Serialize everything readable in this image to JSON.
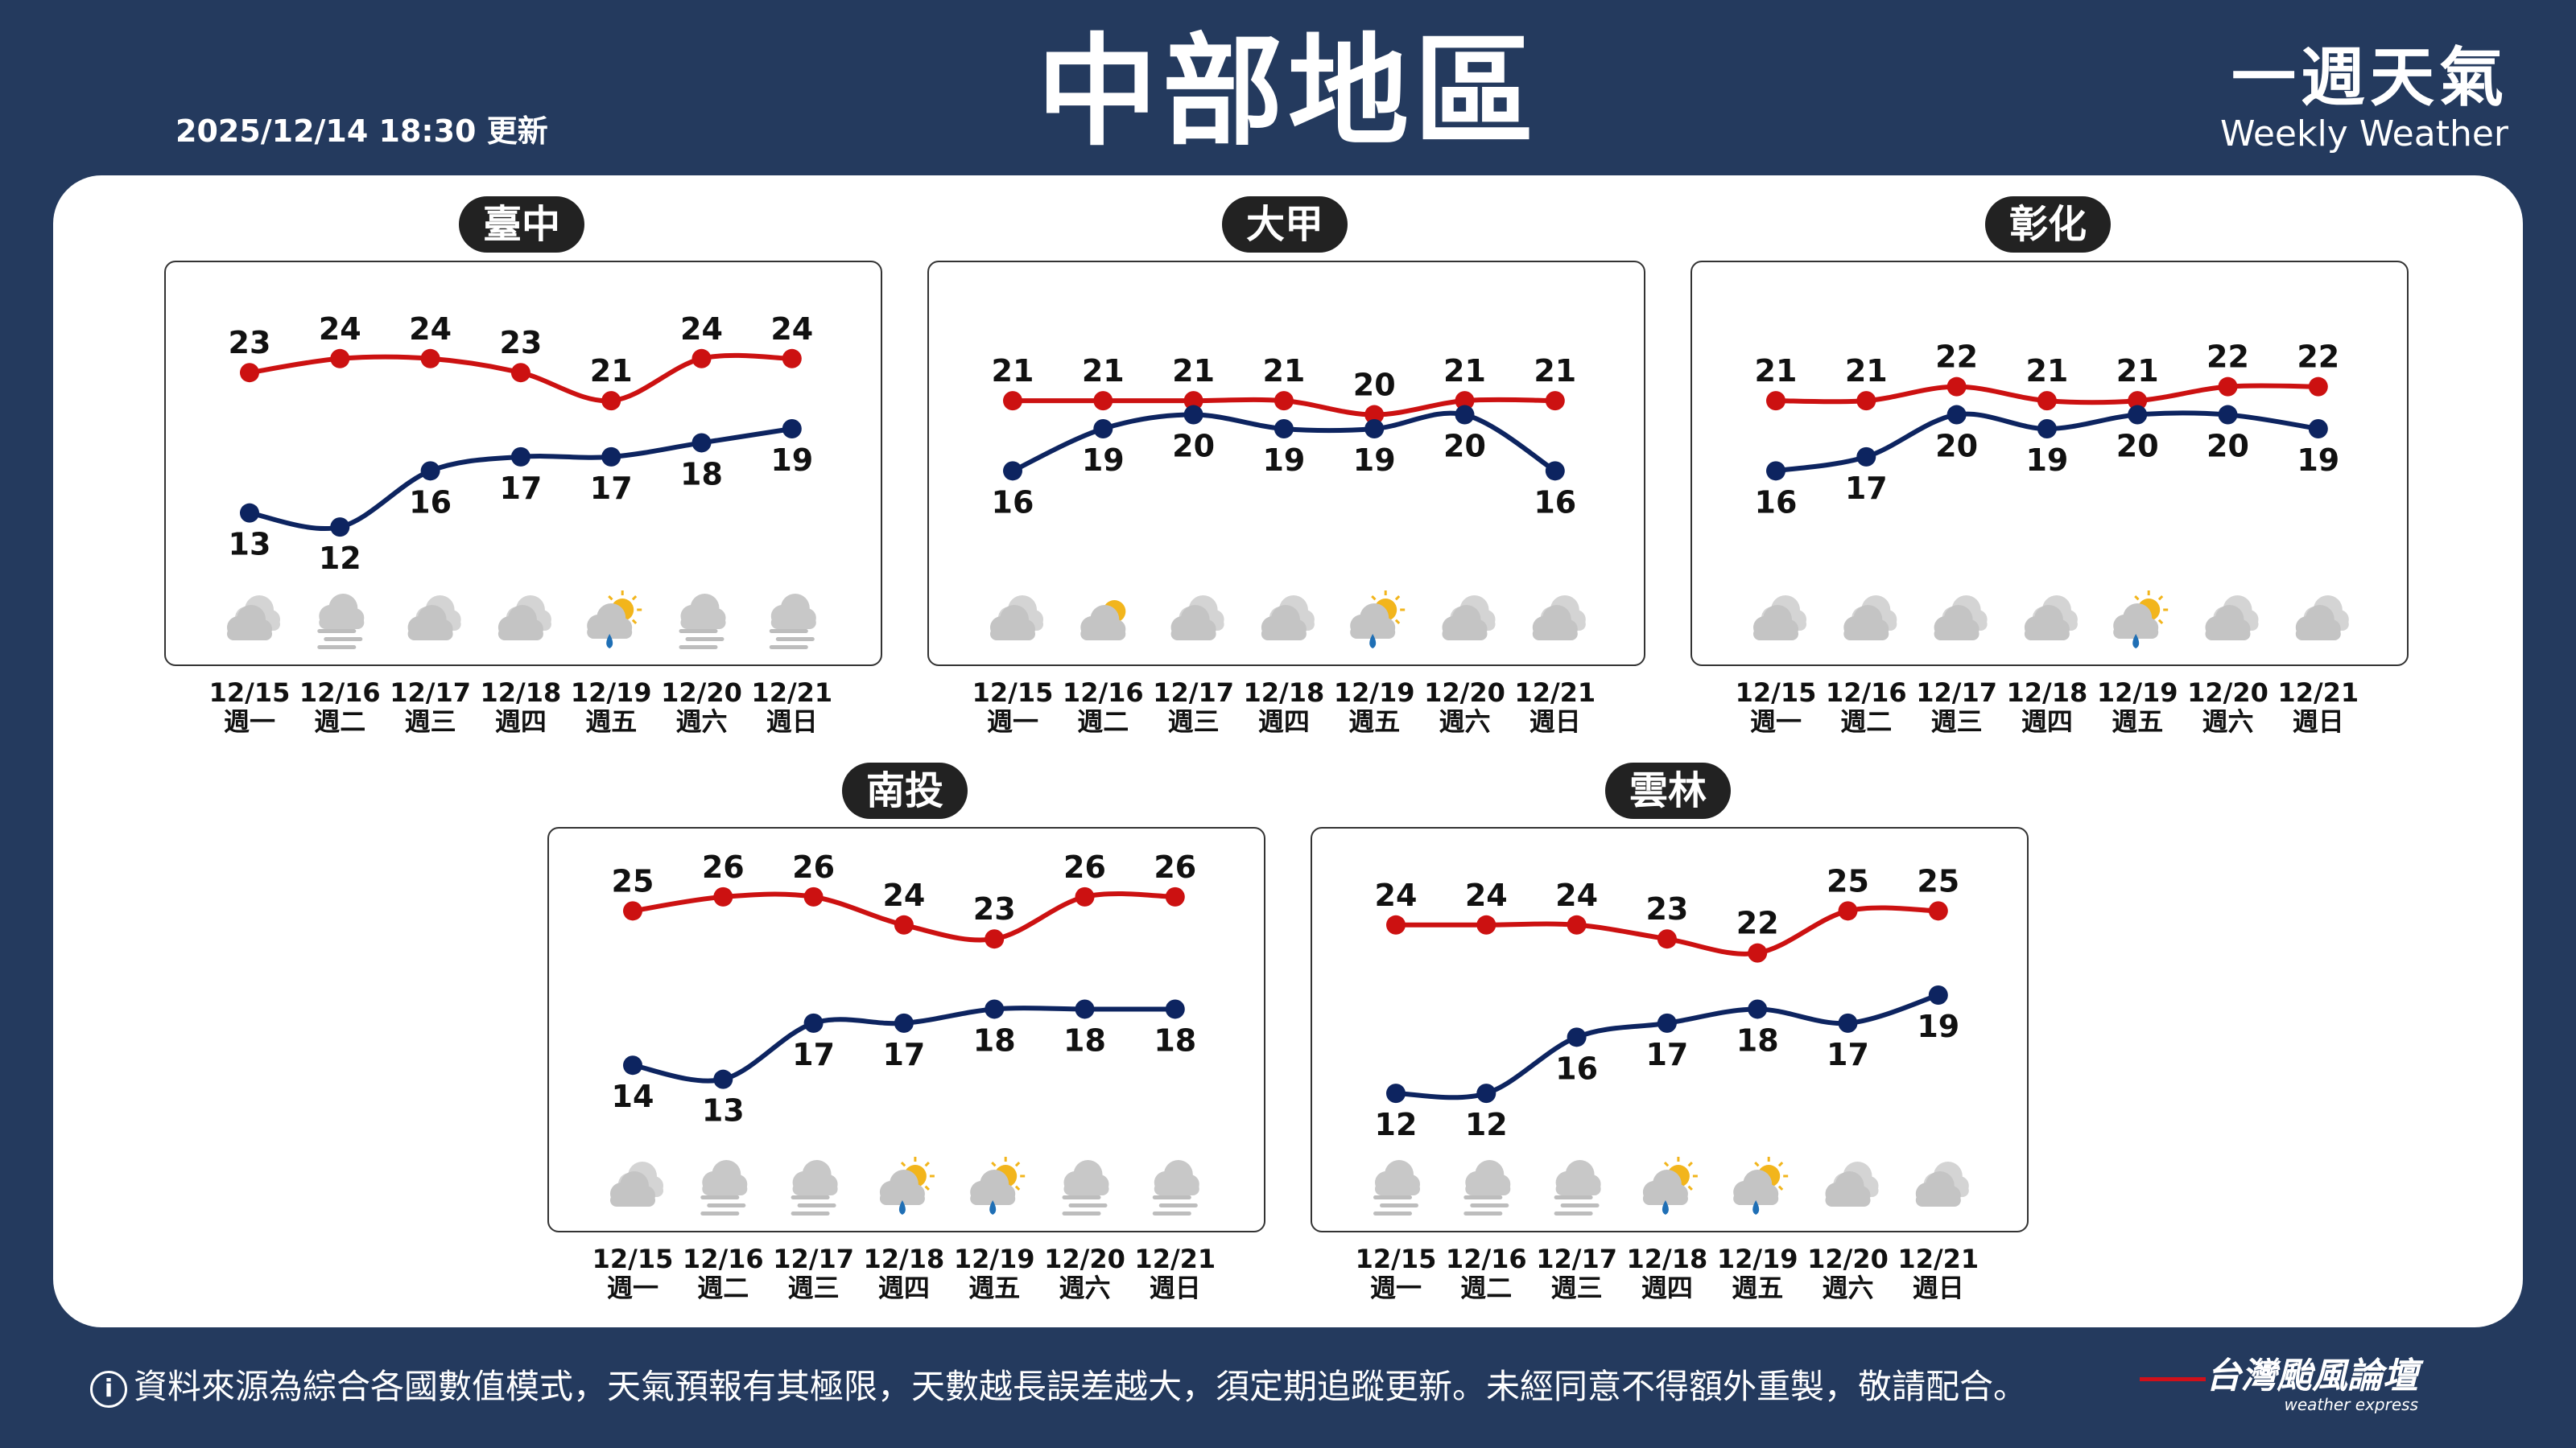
{
  "header": {
    "title": "中部地區",
    "updated": "2025/12/14 18:30 更新",
    "weekly_zh": "一週天氣",
    "weekly_en": "Weekly Weather"
  },
  "dates": [
    "12/15",
    "12/16",
    "12/17",
    "12/18",
    "12/19",
    "12/20",
    "12/21"
  ],
  "weekdays": [
    "週一",
    "週二",
    "週三",
    "週四",
    "週五",
    "週六",
    "週日"
  ],
  "colors": {
    "high": "#cc1111",
    "low": "#0d2460",
    "panel": "#ffffff",
    "background": "#243a5e"
  },
  "cities": [
    {
      "name": "臺中",
      "high": [
        23,
        24,
        24,
        23,
        21,
        24,
        24
      ],
      "low": [
        13,
        12,
        16,
        17,
        17,
        18,
        19
      ],
      "icons": [
        "cloudy-icon",
        "fog-icon",
        "cloudy-icon",
        "cloudy-icon",
        "partly-sunny-rain-icon",
        "fog-icon",
        "fog-icon"
      ]
    },
    {
      "name": "大甲",
      "high": [
        21,
        21,
        21,
        21,
        20,
        21,
        21
      ],
      "low": [
        16,
        19,
        20,
        19,
        19,
        20,
        16
      ],
      "icons": [
        "cloudy-icon",
        "partly-sunny-icon",
        "cloudy-icon",
        "cloudy-icon",
        "partly-sunny-rain-icon",
        "cloudy-icon",
        "cloudy-icon"
      ]
    },
    {
      "name": "彰化",
      "high": [
        21,
        21,
        22,
        21,
        21,
        22,
        22
      ],
      "low": [
        16,
        17,
        20,
        19,
        20,
        20,
        19
      ],
      "icons": [
        "cloudy-icon",
        "cloudy-icon",
        "cloudy-icon",
        "cloudy-icon",
        "partly-sunny-rain-icon",
        "cloudy-icon",
        "cloudy-icon"
      ]
    },
    {
      "name": "南投",
      "high": [
        25,
        26,
        26,
        24,
        23,
        26,
        26
      ],
      "low": [
        14,
        13,
        17,
        17,
        18,
        18,
        18
      ],
      "icons": [
        "cloudy-icon",
        "fog-icon",
        "fog-icon",
        "partly-sunny-rain-icon",
        "partly-sunny-rain-icon",
        "fog-icon",
        "fog-icon"
      ]
    },
    {
      "name": "雲林",
      "high": [
        24,
        24,
        24,
        23,
        22,
        25,
        25
      ],
      "low": [
        12,
        12,
        16,
        17,
        18,
        17,
        19
      ],
      "icons": [
        "fog-icon",
        "fog-icon",
        "fog-icon",
        "partly-sunny-rain-icon",
        "partly-sunny-rain-icon",
        "cloudy-icon",
        "cloudy-icon"
      ]
    }
  ],
  "footer": {
    "notice": "資料來源為綜合各國數值模式，天氣預報有其極限，天數越長誤差越大，須定期追蹤更新。未經同意不得額外重製，敬請配合。",
    "brand_zh": "台灣颱風論壇",
    "brand_en": "weather express"
  }
}
